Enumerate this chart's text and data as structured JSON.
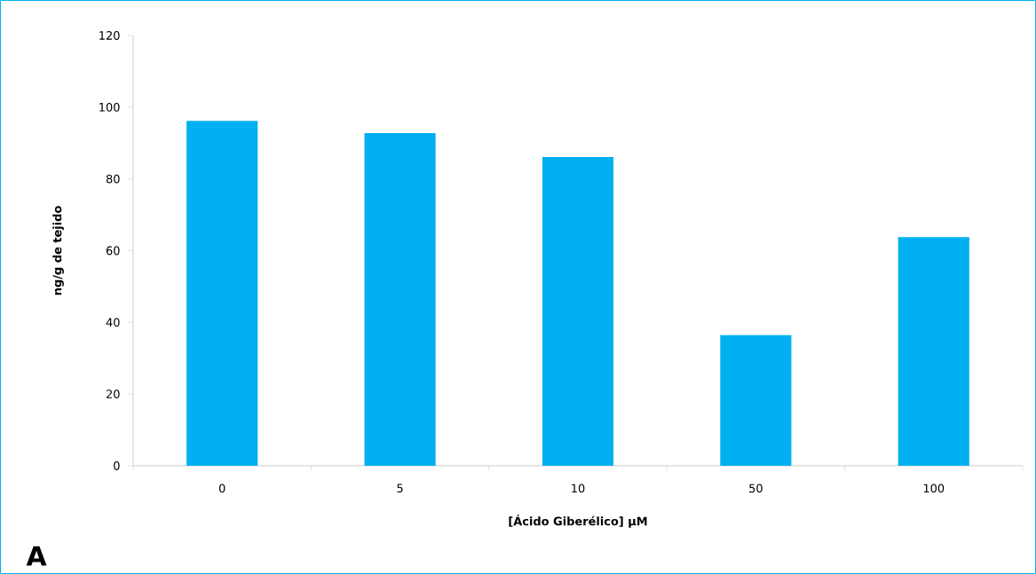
{
  "chart_data": {
    "type": "bar",
    "xlabel": "[Ácido Giberélico] µM",
    "ylabel": "ng/g de tejido",
    "categories": [
      "0",
      "5",
      "10",
      "50",
      "100"
    ],
    "values": [
      96.2,
      92.8,
      86.1,
      36.4,
      63.8
    ],
    "color": "#00b0f0",
    "ylim": [
      0,
      120
    ],
    "yticks": [
      0,
      20,
      40,
      60,
      80,
      100,
      120
    ],
    "grid": false,
    "annotations": [
      "A"
    ]
  }
}
